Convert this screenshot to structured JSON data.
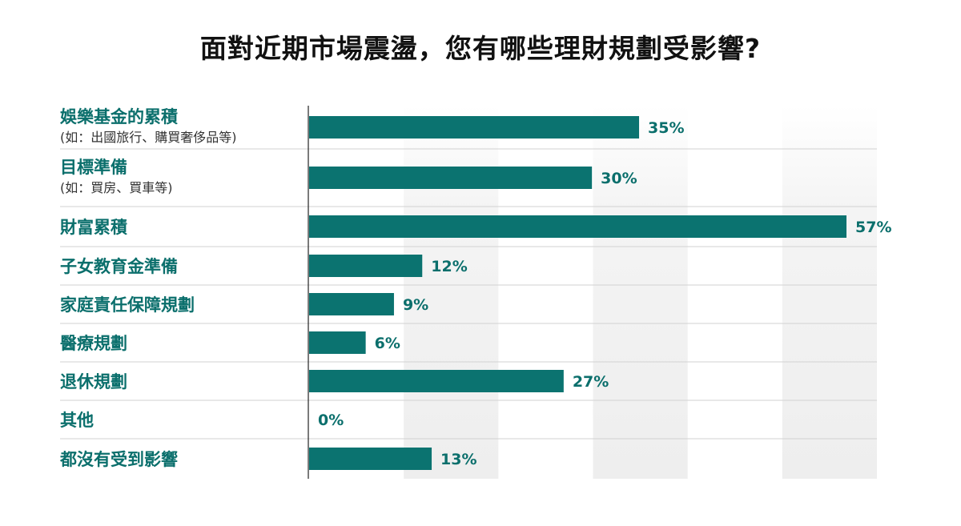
{
  "chart_data": {
    "type": "bar",
    "orientation": "horizontal",
    "title": "面對近期市場震盪，您有哪些理財規劃受影響?",
    "categories": [
      {
        "label": "娛樂基金的累積",
        "sublabel": "(如：出國旅行、購買奢侈品等)"
      },
      {
        "label": "目標準備",
        "sublabel": "(如：買房、買車等)"
      },
      {
        "label": "財富累積"
      },
      {
        "label": "子女教育金準備"
      },
      {
        "label": "家庭責任保障規劃"
      },
      {
        "label": "醫療規劃"
      },
      {
        "label": "退休規劃"
      },
      {
        "label": "其他"
      },
      {
        "label": "都沒有受到影響"
      }
    ],
    "values": [
      35,
      30,
      57,
      12,
      9,
      6,
      27,
      0,
      13
    ],
    "value_labels": [
      "35%",
      "30%",
      "57%",
      "12%",
      "9%",
      "6%",
      "27%",
      "0%",
      "13%"
    ],
    "xlim": [
      0,
      60
    ],
    "legend": "none",
    "grid": "alternating vertical bands",
    "colors": {
      "bar": "#0b7370",
      "label": "#0b6f6c",
      "band": "#f0f0f0"
    }
  }
}
